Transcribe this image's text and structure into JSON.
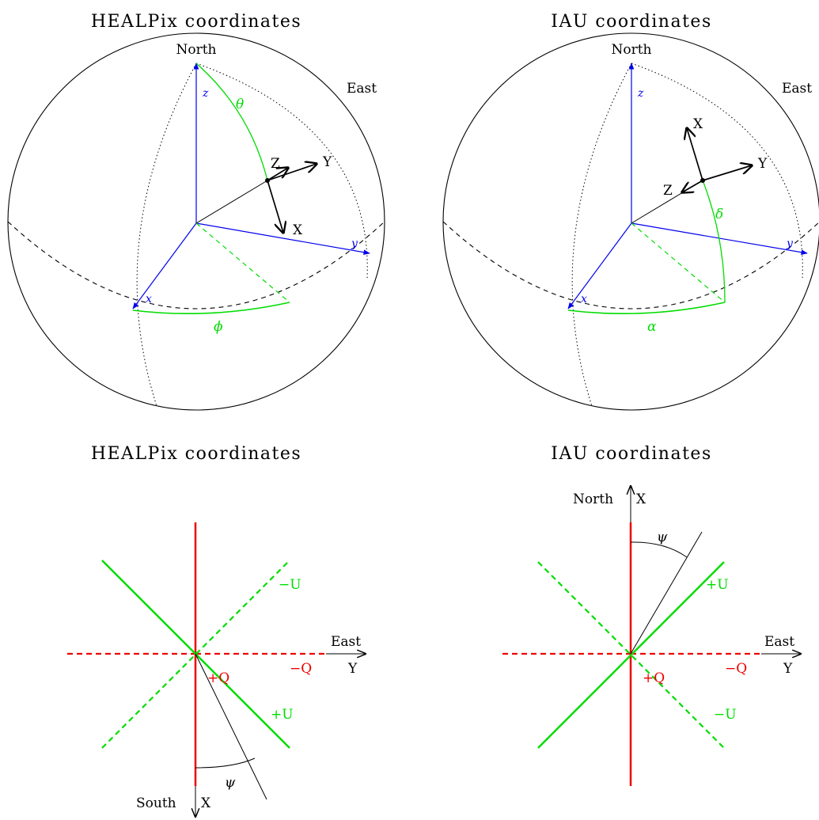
{
  "panels": {
    "healpix_sphere": {
      "title": "HEALPix coordinates",
      "north": "North",
      "east": "East",
      "axis_x": "x",
      "axis_y": "y",
      "axis_z": "z",
      "angle_polar": "θ",
      "angle_azimuth": "ϕ",
      "basis_x": "X",
      "basis_y": "Y",
      "basis_z": "Z"
    },
    "iau_sphere": {
      "title": "IAU coordinates",
      "north": "North",
      "east": "East",
      "axis_x": "x",
      "axis_y": "y",
      "axis_z": "z",
      "angle_dec": "δ",
      "angle_ra": "α",
      "basis_x": "X",
      "basis_y": "Y",
      "basis_z": "Z"
    },
    "healpix_pol": {
      "title": "HEALPix coordinates",
      "east": "East",
      "y_label": "Y",
      "south": "South",
      "x_label": "X",
      "plus_q": "+Q",
      "minus_q": "−Q",
      "plus_u": "+U",
      "minus_u": "−U",
      "psi": "ψ"
    },
    "iau_pol": {
      "title": "IAU coordinates",
      "north": "North",
      "x_label": "X",
      "east": "East",
      "y_label": "Y",
      "plus_q": "+Q",
      "minus_q": "−Q",
      "plus_u": "+U",
      "minus_u": "−U",
      "psi": "ψ"
    }
  },
  "colors": {
    "axes": "#0000ee",
    "angles": "#00dd00",
    "stokes_q": "#ee0000",
    "stokes_u": "#00dd00",
    "frame": "#000000"
  }
}
